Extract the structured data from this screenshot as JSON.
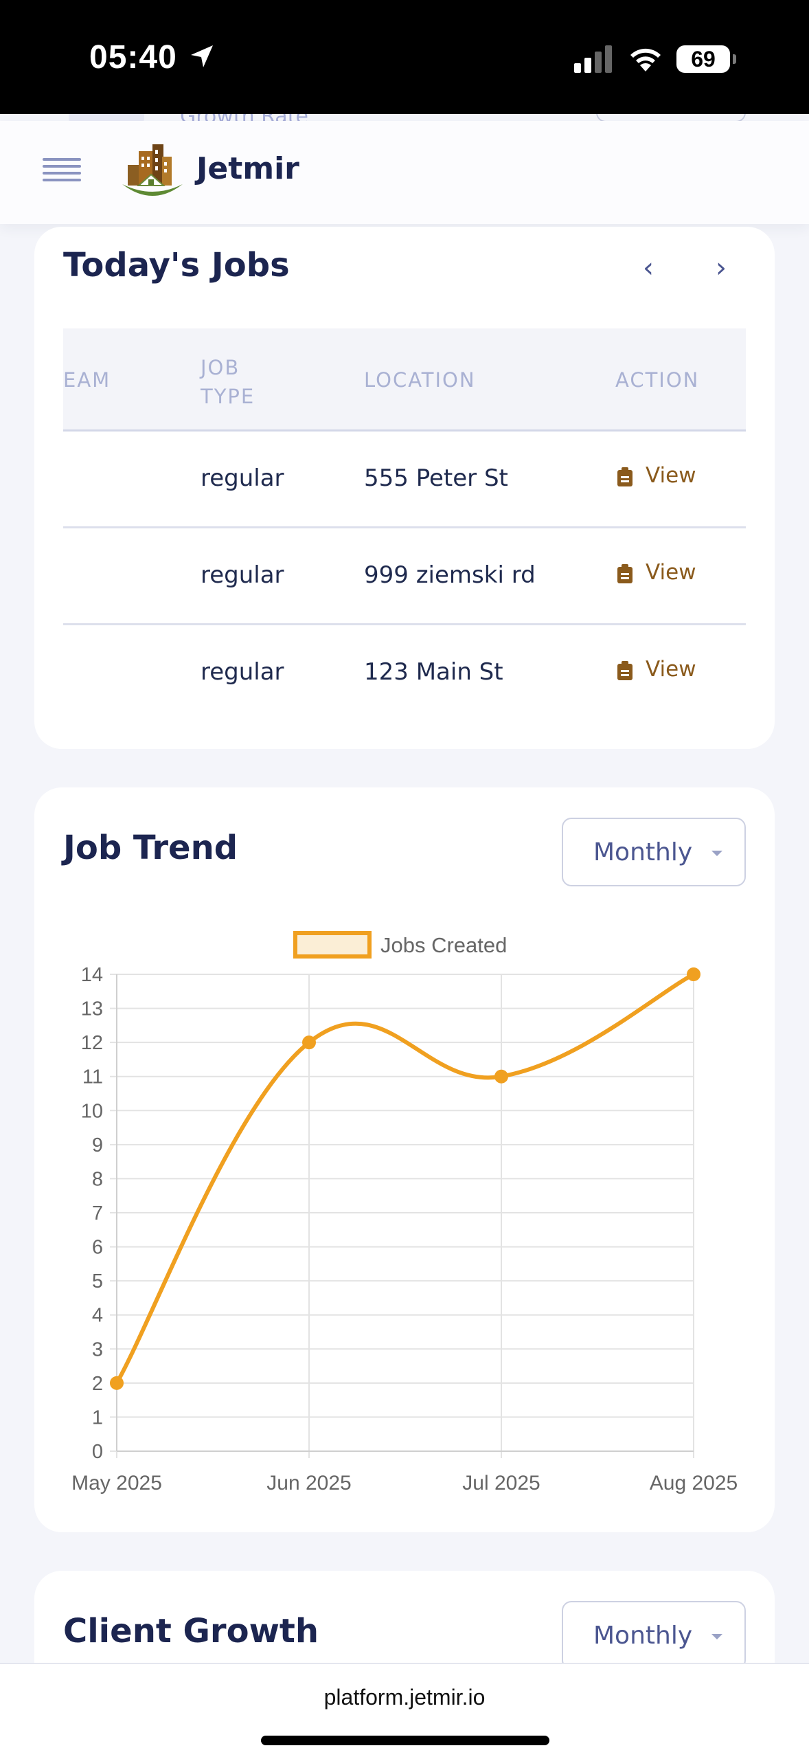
{
  "status_bar": {
    "time": "05:40",
    "battery": "69"
  },
  "header": {
    "brand": "Jetmir",
    "peek_text": "Growth Rate"
  },
  "todays_jobs": {
    "title": "Today's Jobs",
    "prev_label": "‹",
    "next_label": "›",
    "columns": [
      "EAM",
      "JOB\nTYPE",
      "LOCATION",
      "ACTION"
    ],
    "rows": [
      {
        "job_type": "regular",
        "location": "555 Peter St",
        "action": "View"
      },
      {
        "job_type": "regular",
        "location": "999 ziemski rd",
        "action": "View"
      },
      {
        "job_type": "regular",
        "location": "123 Main St",
        "action": "View"
      }
    ]
  },
  "job_trend": {
    "title": "Job Trend",
    "period": "Monthly"
  },
  "chart_data": {
    "type": "line",
    "categories": [
      "May 2025",
      "Jun 2025",
      "Jul 2025",
      "Aug 2025"
    ],
    "series": [
      {
        "name": "Jobs Created",
        "values": [
          2,
          12,
          11,
          14
        ],
        "color": "#f0a020"
      }
    ],
    "ylim": [
      0,
      14
    ],
    "yticks": [
      0,
      1,
      2,
      3,
      4,
      5,
      6,
      7,
      8,
      9,
      10,
      11,
      12,
      13,
      14
    ],
    "grid": true,
    "legend": "top-center",
    "smooth": true
  },
  "client_growth": {
    "title": "Client Growth",
    "period": "Monthly"
  },
  "browser": {
    "url": "platform.jetmir.io"
  },
  "colors": {
    "accent": "#f0a020",
    "title": "#1c2550",
    "link": "#8a5a1c"
  }
}
